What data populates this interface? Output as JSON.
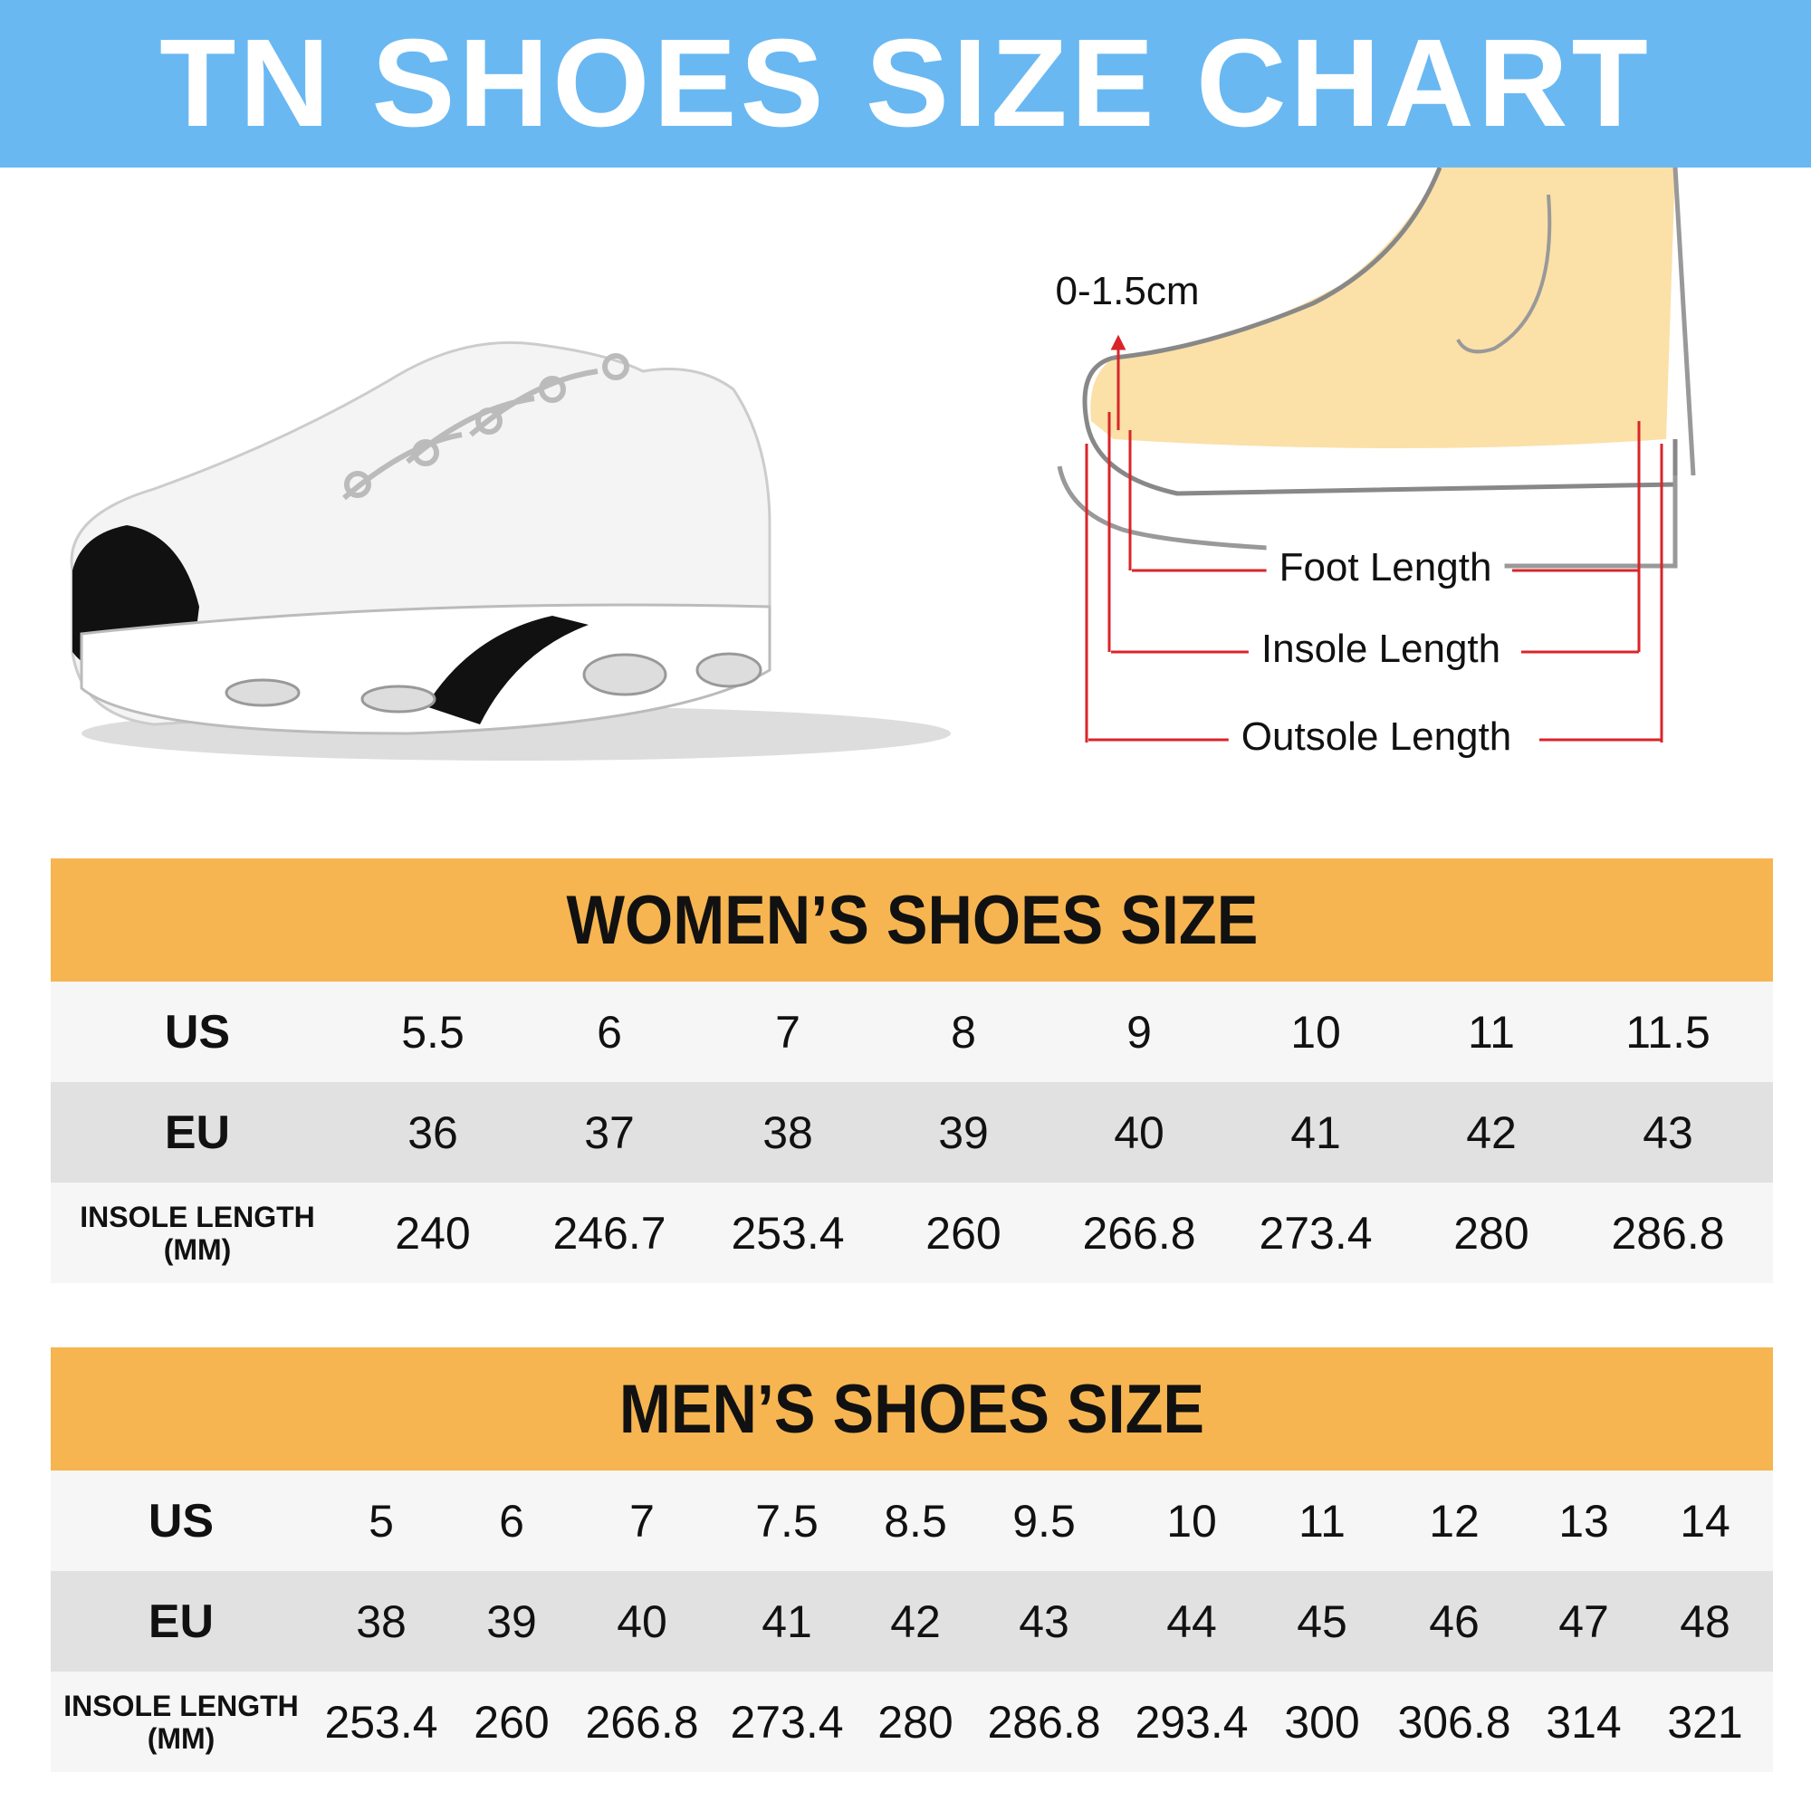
{
  "title": "TN SHOES SIZE CHART",
  "diagram": {
    "toe_gap": "0-1.5cm",
    "foot_length": "Foot Length",
    "insole_length": "Insole Length",
    "outsole_length": "Outsole Length"
  },
  "colors": {
    "banner": "#69b8f2",
    "table_header": "#f6b551",
    "measure_lines": "#d9252a"
  },
  "women": {
    "title": "WOMEN’S SHOES SIZE",
    "labels": {
      "us": "US",
      "eu": "EU",
      "insole": "INSOLE LENGTH",
      "insole_unit": "(MM)"
    },
    "us": [
      "5.5",
      "6",
      "7",
      "8",
      "9",
      "10",
      "11",
      "11.5"
    ],
    "eu": [
      "36",
      "37",
      "38",
      "39",
      "40",
      "41",
      "42",
      "43"
    ],
    "insole": [
      "240",
      "246.7",
      "253.4",
      "260",
      "266.8",
      "273.4",
      "280",
      "286.8"
    ]
  },
  "men": {
    "title": "MEN’S SHOES SIZE",
    "labels": {
      "us": "US",
      "eu": "EU",
      "insole": "INSOLE LENGTH",
      "insole_unit": "(MM)"
    },
    "us": [
      "5",
      "6",
      "7",
      "7.5",
      "8.5",
      "9.5",
      "10",
      "11",
      "12",
      "13",
      "14"
    ],
    "eu": [
      "38",
      "39",
      "40",
      "41",
      "42",
      "43",
      "44",
      "45",
      "46",
      "47",
      "48"
    ],
    "insole": [
      "253.4",
      "260",
      "266.8",
      "273.4",
      "280",
      "286.8",
      "293.4",
      "300",
      "306.8",
      "314",
      "321"
    ]
  }
}
